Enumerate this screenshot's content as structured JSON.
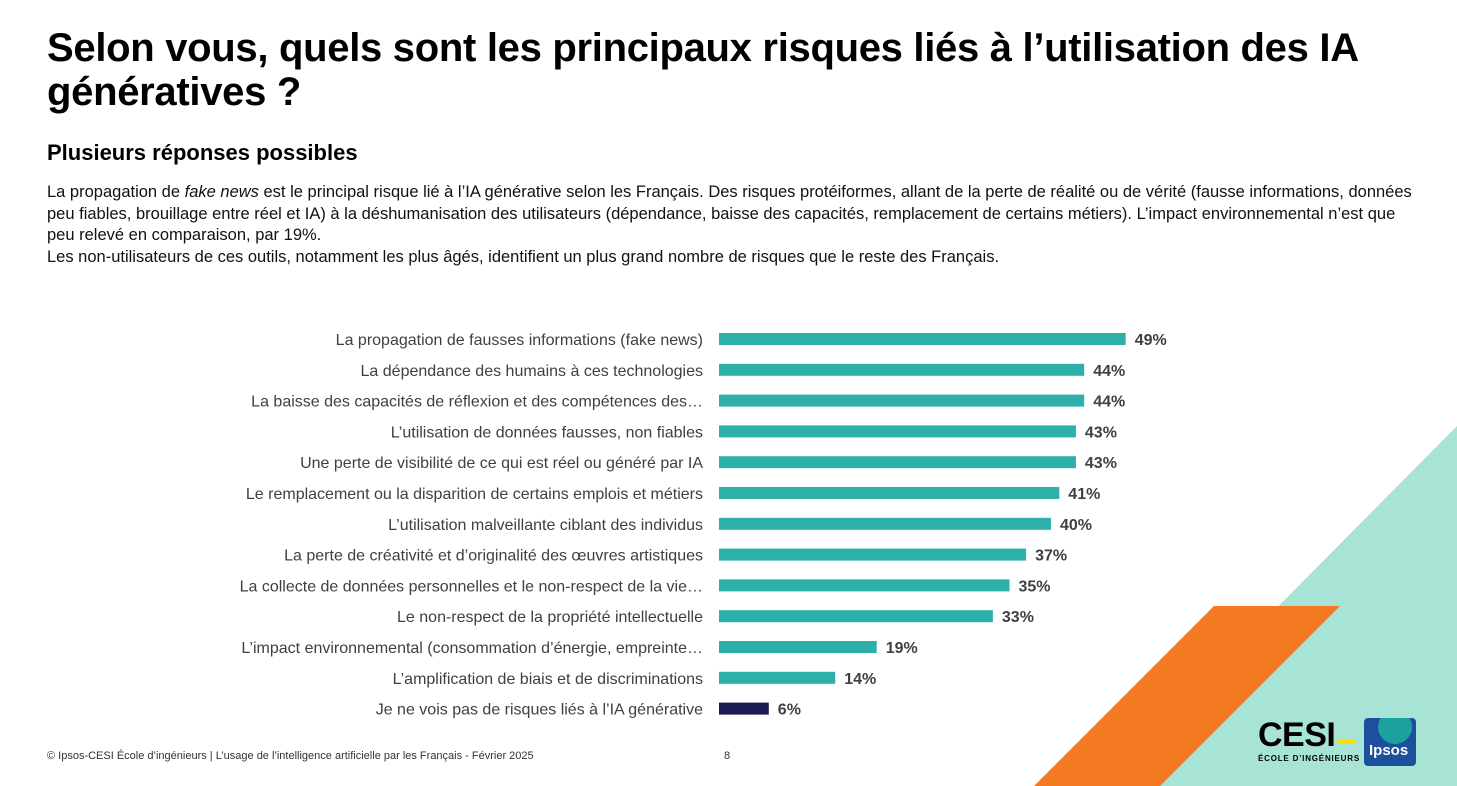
{
  "header": {
    "title": "Selon vous, quels sont les principaux risques liés à l’utilisation des IA génératives ?",
    "subtitle": "Plusieurs réponses possibles"
  },
  "intro": {
    "line1_before": "La propagation de ",
    "line1_em": "fake news",
    "line1_after": " est le principal risque lié à l’IA générative selon les Français. Des risques protéiformes, allant de la perte de réalité ou de vérité (fausse informations, données peu fiables, brouillage entre réel et IA) à la déshumanisation des utilisateurs (dépendance, baisse des capacités, remplacement de certains métiers). L’impact environnemental n’est que peu relevé en comparaison, par 19%.",
    "line2": "Les non-utilisateurs de ces outils, notamment les plus âgés, identifient un plus grand nombre de risques que le reste des Français."
  },
  "chart_data": {
    "type": "bar",
    "orientation": "horizontal",
    "categories": [
      "La propagation de fausses informations (fake news)",
      "La dépendance des humains à ces technologies",
      "La baisse des capacités de réflexion et des compétences des…",
      "L’utilisation de données fausses, non fiables",
      "Une perte de visibilité de ce qui est réel ou généré par IA",
      "Le remplacement ou la disparition de certains emplois et métiers",
      "L’utilisation malveillante ciblant des individus",
      "La perte de créativité et d’originalité des œuvres artistiques",
      "La collecte de données personnelles et le non-respect de la vie…",
      "Le non-respect de la propriété intellectuelle",
      "L’impact environnemental (consommation d’énergie, empreinte…",
      "L’amplification de biais et de discriminations",
      "Je ne vois pas de risques liés à l’IA générative"
    ],
    "values": [
      49,
      44,
      44,
      43,
      43,
      41,
      40,
      37,
      35,
      33,
      19,
      14,
      6
    ],
    "value_labels": [
      "49%",
      "44%",
      "44%",
      "43%",
      "43%",
      "41%",
      "40%",
      "37%",
      "35%",
      "33%",
      "19%",
      "14%",
      "6%"
    ],
    "unit": "%",
    "xlim": [
      0,
      100
    ],
    "grid": false,
    "colors": {
      "default": "#2eb0aa",
      "last": "#1b1b4f"
    }
  },
  "footer": {
    "source": "© Ipsos-CESI École d’ingénieurs | L’usage de l’intelligence artificielle par les Français - Février 2025",
    "page": "8"
  },
  "logos": {
    "cesi_word": "CESI",
    "cesi_sub": "ÉCOLE D’INGÉNIEURS",
    "ipsos_word": "Ipsos"
  },
  "decor_colors": {
    "orange": "#f47a22",
    "mint": "#a8e4d6"
  }
}
